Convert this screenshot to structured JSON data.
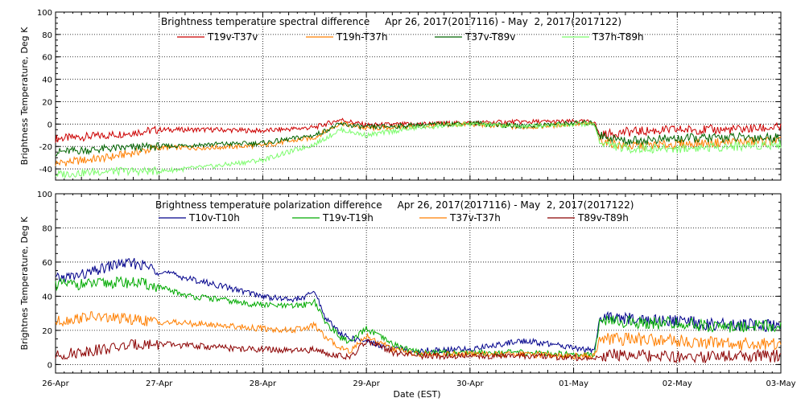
{
  "chart_data": [
    {
      "type": "line",
      "title": "Brightness temperature spectral difference     Apr 26, 2017(2017116) - May  2, 2017(2017122)",
      "ylabel": "Brightness Temperature, Deg K",
      "xlabel": "",
      "ylim": [
        -50,
        100
      ],
      "yticks": [
        -40,
        -20,
        0,
        20,
        40,
        60,
        80,
        100
      ],
      "xlim_days": [
        0,
        7
      ],
      "grid": "dotted vertical + dotted horizontal at 0",
      "legend_position": "top",
      "series": [
        {
          "name": "T19v-T37v",
          "color": "#cc0000",
          "x": [
            0,
            0.5,
            1.0,
            1.5,
            2.0,
            2.5,
            2.75,
            3.0,
            3.5,
            4.0,
            4.5,
            5.0,
            5.2,
            5.25,
            5.5,
            6.0,
            6.5,
            7.0
          ],
          "y": [
            -13,
            -10,
            -5,
            -5,
            -6,
            -3,
            4,
            -1,
            0,
            1,
            2,
            2,
            2,
            -10,
            -7,
            -5,
            -5,
            -3
          ]
        },
        {
          "name": "T19h-T37h",
          "color": "#ff7f00",
          "x": [
            0,
            0.5,
            1.0,
            1.5,
            2.0,
            2.5,
            2.75,
            3.0,
            3.5,
            4.0,
            4.5,
            5.0,
            5.2,
            5.25,
            5.5,
            6.0,
            6.5,
            7.0
          ],
          "y": [
            -35,
            -30,
            -21,
            -21,
            -19,
            -12,
            1,
            -4,
            -2,
            0,
            -3,
            0,
            0,
            -14,
            -20,
            -18,
            -16,
            -15
          ]
        },
        {
          "name": "T37v-T89v",
          "color": "#006400",
          "x": [
            0,
            0.5,
            1.0,
            1.5,
            2.0,
            2.5,
            2.75,
            3.0,
            3.5,
            4.0,
            4.5,
            5.0,
            5.2,
            5.25,
            5.5,
            6.0,
            6.5,
            7.0
          ],
          "y": [
            -25,
            -22,
            -20,
            -18,
            -17,
            -10,
            0,
            -3,
            -1,
            1,
            -2,
            1,
            1,
            -10,
            -15,
            -13,
            -12,
            -12
          ]
        },
        {
          "name": "T37h-T89h",
          "color": "#7cfc6c",
          "x": [
            0,
            0.5,
            1.0,
            1.5,
            2.0,
            2.5,
            2.75,
            3.0,
            3.5,
            4.0,
            4.5,
            5.0,
            5.2,
            5.25,
            5.5,
            6.0,
            6.5,
            7.0
          ],
          "y": [
            -45,
            -42,
            -42,
            -38,
            -32,
            -18,
            -5,
            -10,
            -3,
            0,
            -2,
            0,
            0,
            -16,
            -22,
            -22,
            -20,
            -18
          ]
        }
      ]
    },
    {
      "type": "line",
      "title": "Brightness temperature polarization difference     Apr 26, 2017(2017116) - May  2, 2017(2017122)",
      "ylabel": "Brightnes Temperature, Deg K",
      "xlabel": "Date (EST)",
      "ylim": [
        -5,
        100
      ],
      "yticks": [
        0,
        20,
        40,
        60,
        80,
        100
      ],
      "xlim_days": [
        0,
        7
      ],
      "categories": [
        "26-Apr",
        "27-Apr",
        "28-Apr",
        "29-Apr",
        "30-Apr",
        "01-May",
        "02-May",
        "03-May"
      ],
      "grid": "dotted vertical + dotted horizontal",
      "legend_position": "top",
      "series": [
        {
          "name": "T10v-T10h",
          "color": "#00008b",
          "x": [
            0,
            0.3,
            0.6,
            0.8,
            1.0,
            1.3,
            1.6,
            1.8,
            2.0,
            2.25,
            2.4,
            2.5,
            2.6,
            2.75,
            2.85,
            3.0,
            3.25,
            3.5,
            4.0,
            4.5,
            5.0,
            5.2,
            5.25,
            5.5,
            6.0,
            6.5,
            6.75,
            7.0
          ],
          "y": [
            50,
            53,
            59,
            59,
            55,
            50,
            46,
            43,
            40,
            38,
            39,
            43,
            28,
            18,
            15,
            14,
            9,
            8,
            9,
            14,
            10,
            8,
            27,
            27,
            25,
            23,
            23,
            22
          ]
        },
        {
          "name": "T19v-T19h",
          "color": "#00aa00",
          "x": [
            0,
            0.3,
            0.6,
            0.8,
            1.0,
            1.3,
            1.6,
            1.8,
            2.0,
            2.25,
            2.4,
            2.5,
            2.6,
            2.75,
            2.85,
            3.0,
            3.25,
            3.5,
            4.0,
            4.5,
            5.0,
            5.2,
            5.25,
            5.5,
            6.0,
            6.5,
            6.75,
            7.0
          ],
          "y": [
            47,
            47,
            48,
            48,
            45,
            40,
            38,
            36,
            35,
            34,
            35,
            37,
            25,
            16,
            13,
            21,
            12,
            7,
            7,
            7,
            6,
            6,
            25,
            25,
            24,
            22,
            23,
            22
          ]
        },
        {
          "name": "T37v-T37h",
          "color": "#ff7f00",
          "x": [
            0,
            0.3,
            0.6,
            0.8,
            1.0,
            1.3,
            1.6,
            1.8,
            2.0,
            2.25,
            2.4,
            2.5,
            2.6,
            2.75,
            2.85,
            3.0,
            3.25,
            3.5,
            4.0,
            4.5,
            5.0,
            5.2,
            5.25,
            5.5,
            6.0,
            6.5,
            6.75,
            7.0
          ],
          "y": [
            25,
            28,
            27,
            26,
            25,
            24,
            23,
            22,
            21,
            20,
            21,
            23,
            16,
            10,
            8,
            17,
            9,
            6,
            6,
            6,
            5,
            5,
            15,
            15,
            14,
            12,
            12,
            12
          ]
        },
        {
          "name": "T89v-T89h",
          "color": "#8b0000",
          "x": [
            0,
            0.3,
            0.6,
            0.8,
            1.0,
            1.3,
            1.6,
            1.8,
            2.0,
            2.25,
            2.4,
            2.5,
            2.6,
            2.75,
            2.85,
            3.0,
            3.25,
            3.5,
            4.0,
            4.5,
            5.0,
            5.2,
            5.25,
            5.5,
            6.0,
            6.5,
            6.75,
            7.0
          ],
          "y": [
            5,
            8,
            10,
            12,
            12,
            11,
            10,
            9,
            9,
            8,
            8,
            9,
            7,
            5,
            4,
            14,
            7,
            5,
            5,
            5,
            4,
            4,
            5,
            6,
            4,
            5,
            5,
            5
          ]
        }
      ]
    }
  ]
}
